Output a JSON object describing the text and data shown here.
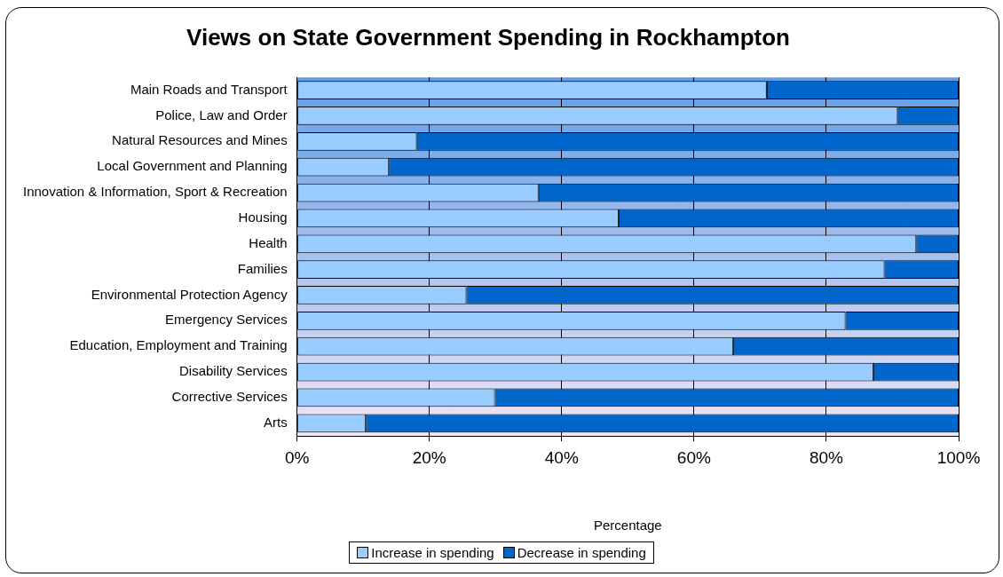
{
  "chart_data": {
    "type": "bar",
    "orientation": "horizontal",
    "stacked": true,
    "title": "Views on State Government Spending in Rockhampton",
    "xlabel": "Percentage",
    "categories": [
      "Main Roads and Transport",
      "Police, Law and Order",
      "Natural Resources and Mines",
      "Local Government and Planning",
      "Innovation & Information, Sport & Recreation",
      "Housing",
      "Health",
      "Families",
      "Environmental Protection Agency",
      "Emergency Services",
      "Education, Employment and Training",
      "Disability Services",
      "Corrective Services",
      "Arts"
    ],
    "series": [
      {
        "name": "Increase in spending",
        "color": "#99ccff",
        "values": [
          71.0,
          90.8,
          18.1,
          13.9,
          36.5,
          48.6,
          93.6,
          88.8,
          25.6,
          82.9,
          65.9,
          87.1,
          29.9,
          10.4
        ]
      },
      {
        "name": "Decrease in spending",
        "color": "#0066cc",
        "values": [
          29.0,
          9.2,
          81.9,
          86.1,
          63.5,
          51.4,
          6.4,
          11.2,
          74.4,
          17.1,
          34.1,
          12.9,
          70.1,
          89.6
        ]
      }
    ],
    "xlim": [
      0,
      100
    ],
    "xticks": [
      {
        "value": 0,
        "label": "0%"
      },
      {
        "value": 20,
        "label": "20%"
      },
      {
        "value": 40,
        "label": "40%"
      },
      {
        "value": 60,
        "label": "60%"
      },
      {
        "value": 80,
        "label": "80%"
      },
      {
        "value": 100,
        "label": "100%"
      }
    ],
    "grid": "x",
    "legend": "bottom"
  }
}
